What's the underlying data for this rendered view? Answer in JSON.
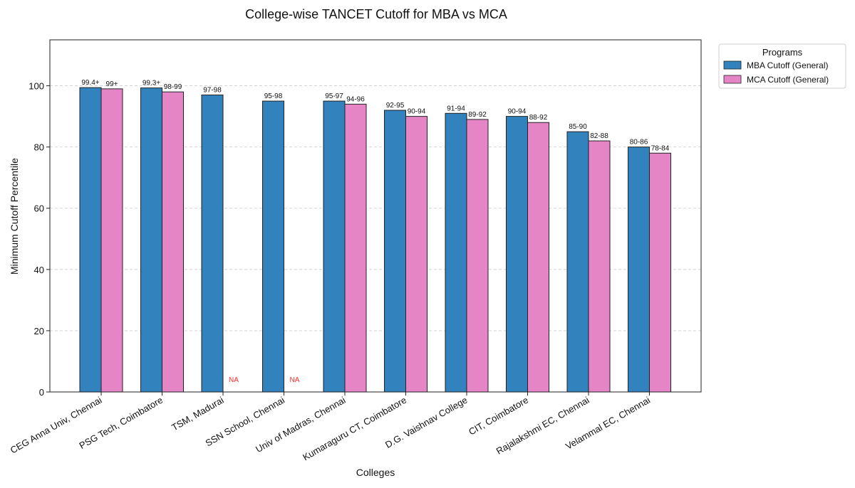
{
  "chart_data": {
    "type": "bar",
    "title": "College-wise TANCET Cutoff for MBA vs MCA",
    "xlabel": "Colleges",
    "ylabel": "Minimum Cutoff Percentile",
    "ylim": [
      0,
      115
    ],
    "yticks": [
      0,
      20,
      40,
      60,
      80,
      100
    ],
    "grid": true,
    "legend": {
      "title": "Programs",
      "placement": "outside-top-right"
    },
    "categories": [
      "CEG Anna Univ, Chennai",
      "PSG Tech, Coimbatore",
      "TSM, Madurai",
      "SSN School, Chennai",
      "Univ of Madras, Chennai",
      "Kumaraguru CT, Coimbatore",
      "D.G. Vaishnav College",
      "CIT, Coimbatore",
      "Rajalakshmi EC, Chennai",
      "Velammal EC, Chennai"
    ],
    "series": [
      {
        "name": "MBA Cutoff (General)",
        "color": "#3182bd",
        "values": [
          99.4,
          99.3,
          97,
          95,
          95,
          92,
          91,
          90,
          85,
          80
        ],
        "labels": [
          "99.4+",
          "99.3+",
          "97-98",
          "95-98",
          "95-97",
          "92-95",
          "91-94",
          "90-94",
          "85-90",
          "80-86"
        ]
      },
      {
        "name": "MCA Cutoff (General)",
        "color": "#e585c6",
        "values": [
          99,
          98,
          0,
          0,
          94,
          90,
          89,
          88,
          82,
          78
        ],
        "labels": [
          "99+",
          "98-99",
          "NA",
          "NA",
          "94-96",
          "90-94",
          "89-92",
          "88-92",
          "82-88",
          "78-84"
        ]
      }
    ],
    "na_color": "#ff2a2a"
  }
}
